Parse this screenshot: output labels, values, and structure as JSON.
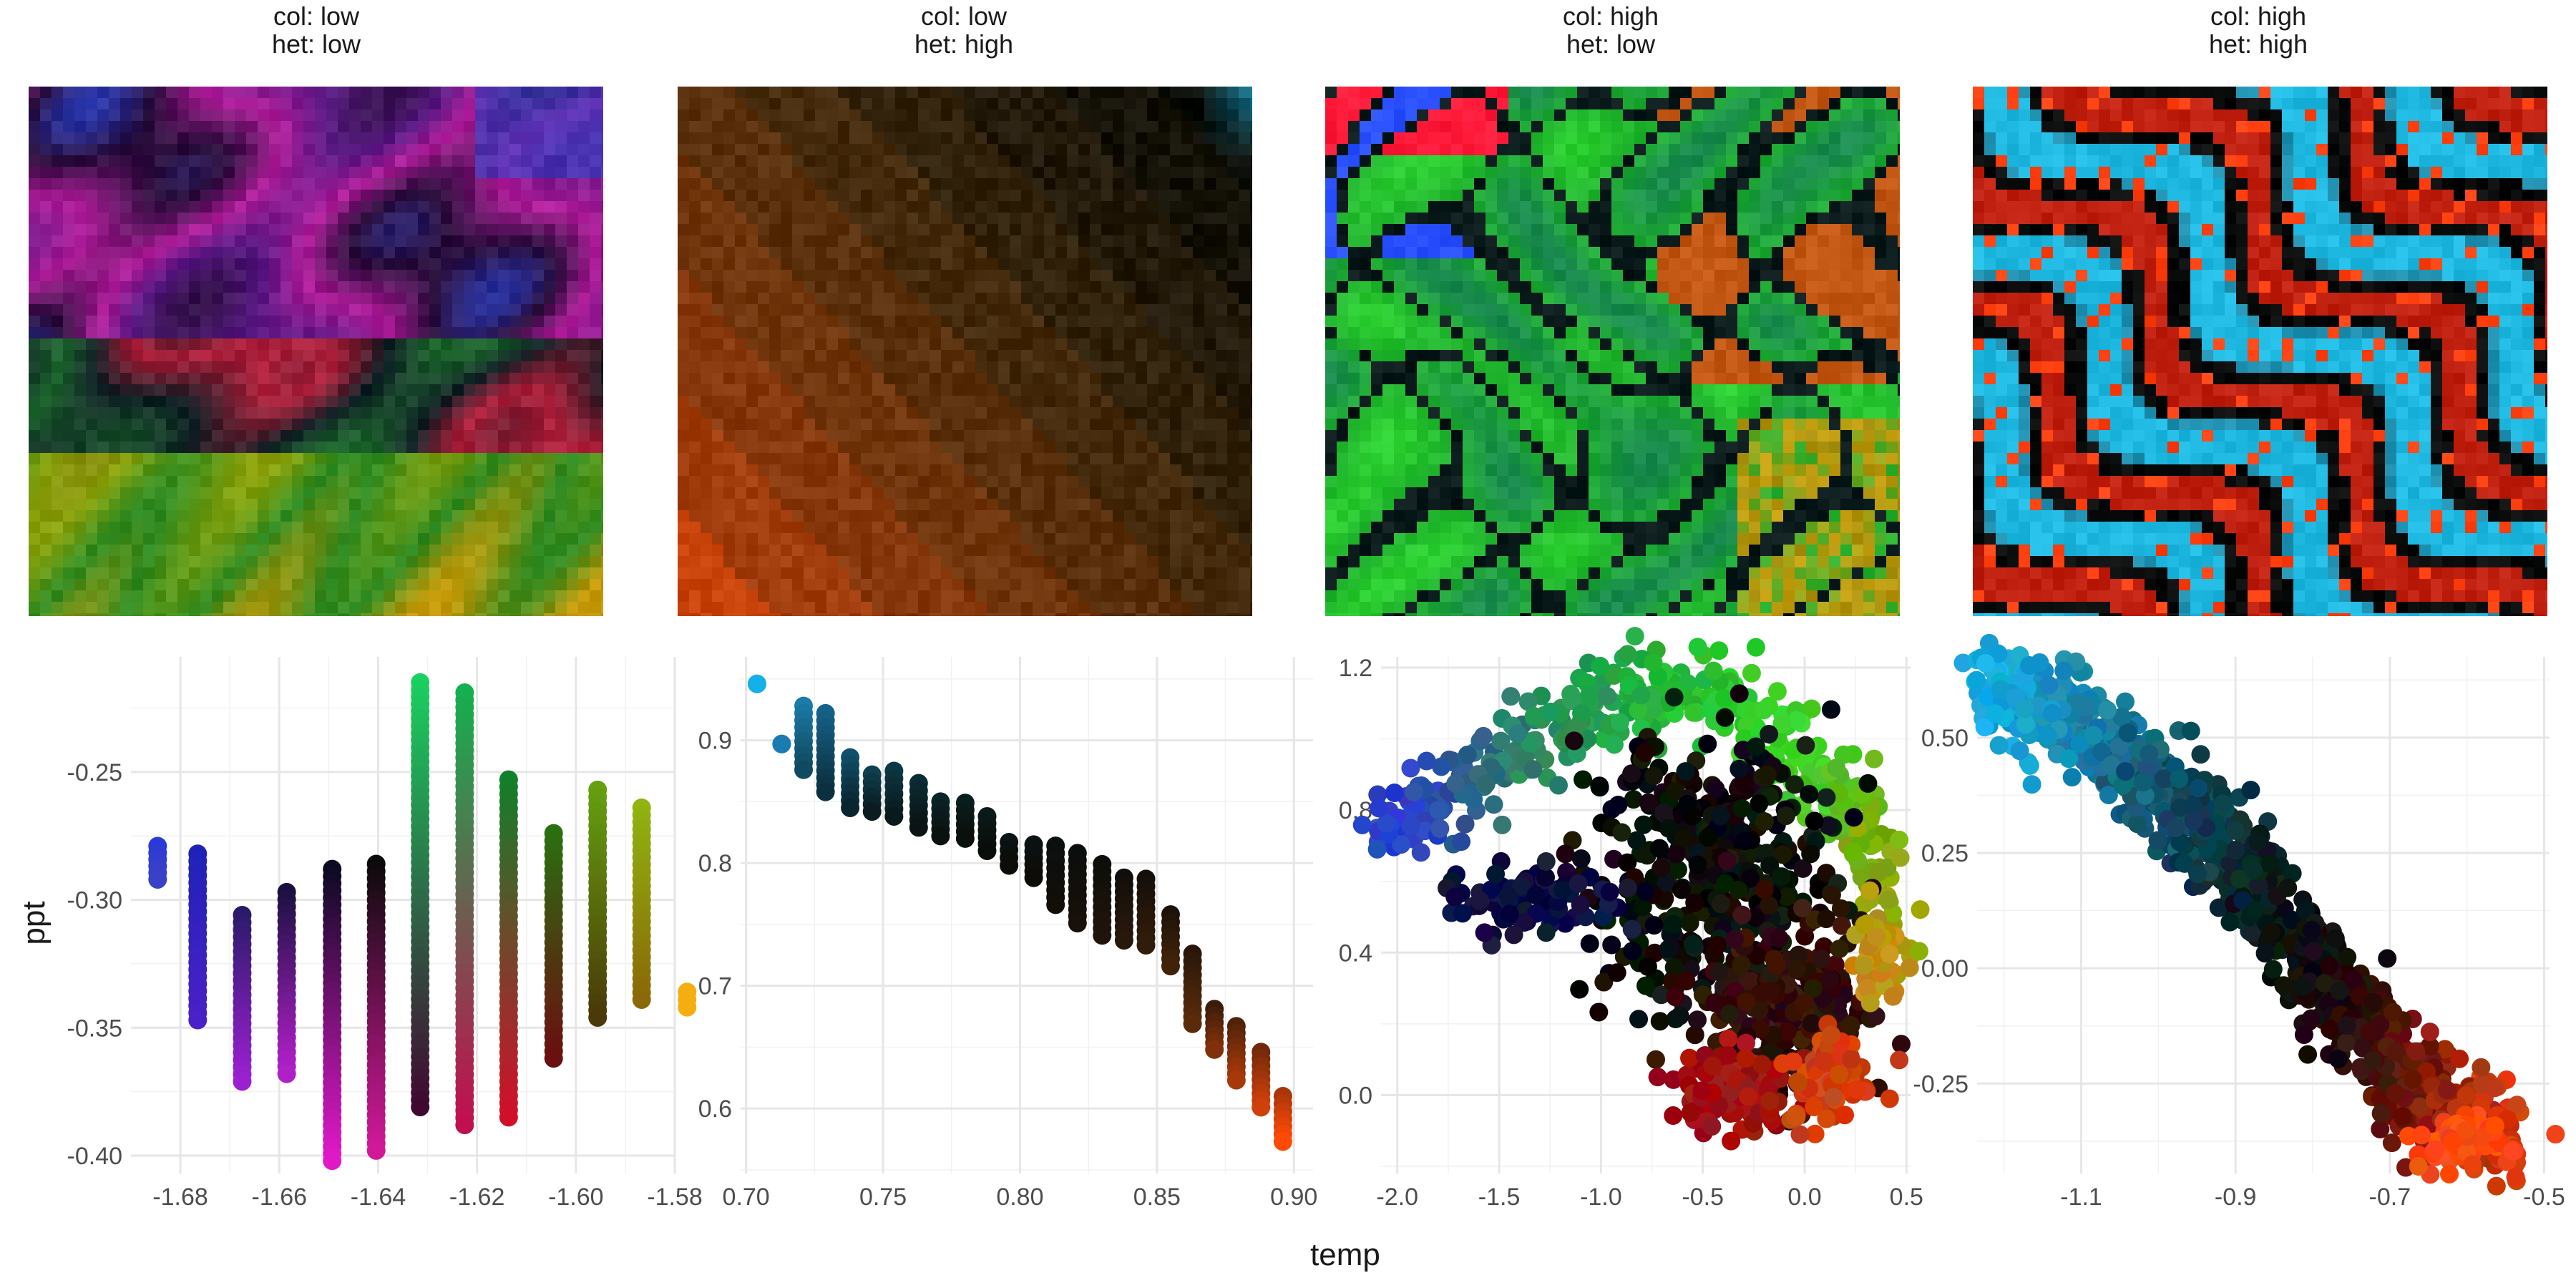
{
  "figure": {
    "x_axis_title": "temp",
    "y_axis_title": "ppt"
  },
  "chart_data": [
    {
      "type": "heatmap",
      "title_line1": "col: low",
      "title_line2": "het: low",
      "colors": [
        "#2a0f3c",
        "#b01d9a",
        "#5a1a85",
        "#2a40c8",
        "#b0203c",
        "#0f1f25",
        "#1f6a2f",
        "#3a3a10",
        "#7a6a08",
        "#8aa20c",
        "#2c8a22",
        "#1b8c1a",
        "#c49a08",
        "#18e03a"
      ]
    },
    {
      "type": "heatmap",
      "title_line1": "col: low",
      "title_line2": "het: high",
      "colors": [
        "#1aa6d0",
        "#080b06",
        "#1a1408",
        "#2e200b",
        "#4a2c0c",
        "#6a340c",
        "#8a380c",
        "#b0400c",
        "#ff4a05"
      ]
    },
    {
      "type": "heatmap",
      "title_line1": "col: high",
      "title_line2": "het: low",
      "colors": [
        "#ff1a3a",
        "#2a50ff",
        "#0a1a1a",
        "#1a8a50",
        "#20b030",
        "#2cd030",
        "#ff6a10",
        "#a08a08",
        "#c8a010"
      ]
    },
    {
      "type": "heatmap",
      "title_line1": "col: high",
      "title_line2": "het: high",
      "colors": [
        "#1fb8e0",
        "#ff4010",
        "#c02010",
        "#0a0c0c",
        "#2090b0"
      ]
    },
    {
      "type": "scatter",
      "xlim": [
        -1.69,
        -1.58
      ],
      "ylim": [
        -0.407,
        -0.205
      ],
      "xticks": [
        -1.68,
        -1.66,
        -1.64,
        -1.62,
        -1.6,
        -1.58
      ],
      "xtick_labels": [
        "-1.68",
        "-1.66",
        "-1.64",
        "-1.62",
        "-1.60",
        "-1.58"
      ],
      "yticks": [
        -0.4,
        -0.35,
        -0.3,
        -0.25
      ],
      "ytick_labels": [
        "-0.40",
        "-0.35",
        "-0.30",
        "-0.25"
      ],
      "columns": [
        {
          "x": -1.6846,
          "ymin": -0.292,
          "ymax": -0.279,
          "top": "#2a3ad8",
          "bottom": "#3a40c8"
        },
        {
          "x": -1.6765,
          "ymin": -0.347,
          "ymax": -0.282,
          "top": "#1f22b8",
          "bottom": "#4a20c8"
        },
        {
          "x": -1.6675,
          "ymin": -0.371,
          "ymax": -0.306,
          "top": "#2a1a6a",
          "bottom": "#9a20d0"
        },
        {
          "x": -1.6585,
          "ymin": -0.368,
          "ymax": -0.297,
          "top": "#1a1040",
          "bottom": "#b020c8"
        },
        {
          "x": -1.6493,
          "ymin": -0.402,
          "ymax": -0.288,
          "top": "#0a0a20",
          "bottom": "#e018c8"
        },
        {
          "x": -1.6404,
          "ymin": -0.398,
          "ymax": -0.286,
          "top": "#0a0a0a",
          "bottom": "#d01898"
        },
        {
          "x": -1.6315,
          "ymin": -0.381,
          "ymax": -0.215,
          "top": "#1ad060",
          "bottom": "#400a30"
        },
        {
          "x": -1.6225,
          "ymin": -0.388,
          "ymax": -0.219,
          "top": "#14b050",
          "bottom": "#c01050"
        },
        {
          "x": -1.6136,
          "ymin": -0.385,
          "ymax": -0.253,
          "top": "#10802a",
          "bottom": "#d0102a"
        },
        {
          "x": -1.6045,
          "ymin": -0.362,
          "ymax": -0.274,
          "top": "#2a7010",
          "bottom": "#6a1010"
        },
        {
          "x": -1.5956,
          "ymin": -0.346,
          "ymax": -0.257,
          "top": "#66a010",
          "bottom": "#4a3a08"
        },
        {
          "x": -1.5867,
          "ymin": -0.339,
          "ymax": -0.264,
          "top": "#90b410",
          "bottom": "#8a6a08"
        },
        {
          "x": -1.5775,
          "ymin": -0.342,
          "ymax": -0.336,
          "top": "#f4ae10",
          "bottom": "#f4ae10"
        }
      ]
    },
    {
      "type": "scatter",
      "xlim": [
        0.698,
        0.907
      ],
      "ylim": [
        0.547,
        0.968
      ],
      "xticks": [
        0.7,
        0.75,
        0.8,
        0.85,
        0.9
      ],
      "xtick_labels": [
        "0.70",
        "0.75",
        "0.80",
        "0.85",
        "0.90"
      ],
      "yticks": [
        0.6,
        0.7,
        0.8,
        0.9
      ],
      "ytick_labels": [
        "0.6",
        "0.7",
        "0.8",
        "0.9"
      ],
      "columns": [
        {
          "x": 0.704,
          "ymin": 0.946,
          "ymax": 0.946,
          "top": "#14b0e8",
          "bottom": "#14b0e8"
        },
        {
          "x": 0.713,
          "ymin": 0.897,
          "ymax": 0.897,
          "top": "#1a7cb0",
          "bottom": "#1a7cb0"
        },
        {
          "x": 0.721,
          "ymin": 0.876,
          "ymax": 0.928,
          "top": "#1a7ca8",
          "bottom": "#104a60"
        },
        {
          "x": 0.729,
          "ymin": 0.858,
          "ymax": 0.922,
          "top": "#15628a",
          "bottom": "#0c3040"
        },
        {
          "x": 0.738,
          "ymin": 0.845,
          "ymax": 0.886,
          "top": "#10506a",
          "bottom": "#0a2530"
        },
        {
          "x": 0.746,
          "ymin": 0.842,
          "ymax": 0.872,
          "top": "#0e4050",
          "bottom": "#0a1c22"
        },
        {
          "x": 0.754,
          "ymin": 0.838,
          "ymax": 0.875,
          "top": "#0c3844",
          "bottom": "#0a1a1c"
        },
        {
          "x": 0.763,
          "ymin": 0.829,
          "ymax": 0.865,
          "top": "#0a2c34",
          "bottom": "#0a1414"
        },
        {
          "x": 0.771,
          "ymin": 0.822,
          "ymax": 0.85,
          "top": "#0a2428",
          "bottom": "#0a1210"
        },
        {
          "x": 0.78,
          "ymin": 0.82,
          "ymax": 0.849,
          "top": "#0a1e20",
          "bottom": "#0a100c"
        },
        {
          "x": 0.788,
          "ymin": 0.81,
          "ymax": 0.838,
          "top": "#0a1a1a",
          "bottom": "#0a0e0a"
        },
        {
          "x": 0.796,
          "ymin": 0.798,
          "ymax": 0.817,
          "top": "#0a1414",
          "bottom": "#0c0c08"
        },
        {
          "x": 0.805,
          "ymin": 0.788,
          "ymax": 0.815,
          "top": "#0a1212",
          "bottom": "#0e0c08"
        },
        {
          "x": 0.813,
          "ymin": 0.766,
          "ymax": 0.814,
          "top": "#0a1010",
          "bottom": "#120e08"
        },
        {
          "x": 0.821,
          "ymin": 0.751,
          "ymax": 0.808,
          "top": "#0a0e0c",
          "bottom": "#18100a"
        },
        {
          "x": 0.83,
          "ymin": 0.741,
          "ymax": 0.799,
          "top": "#0c0e0a",
          "bottom": "#20140a"
        },
        {
          "x": 0.838,
          "ymin": 0.737,
          "ymax": 0.788,
          "top": "#100e0a",
          "bottom": "#28180a"
        },
        {
          "x": 0.846,
          "ymin": 0.733,
          "ymax": 0.787,
          "top": "#140e0a",
          "bottom": "#301c0a"
        },
        {
          "x": 0.855,
          "ymin": 0.716,
          "ymax": 0.758,
          "top": "#1c120a",
          "bottom": "#40220a"
        },
        {
          "x": 0.863,
          "ymin": 0.669,
          "ymax": 0.726,
          "top": "#28160a",
          "bottom": "#5a2a0a"
        },
        {
          "x": 0.871,
          "ymin": 0.648,
          "ymax": 0.681,
          "top": "#3a1c0a",
          "bottom": "#80300a"
        },
        {
          "x": 0.879,
          "ymin": 0.623,
          "ymax": 0.667,
          "top": "#50220a",
          "bottom": "#a8380a"
        },
        {
          "x": 0.888,
          "ymin": 0.601,
          "ymax": 0.646,
          "top": "#70280a",
          "bottom": "#d0400a"
        },
        {
          "x": 0.896,
          "ymin": 0.573,
          "ymax": 0.61,
          "top": "#a8360a",
          "bottom": "#ff4a05"
        }
      ]
    },
    {
      "type": "scatter",
      "xlim": [
        -2.08,
        0.52
      ],
      "ylim": [
        -0.22,
        1.23
      ],
      "xticks": [
        -2.0,
        -1.5,
        -1.0,
        -0.5,
        0.0,
        0.5
      ],
      "xtick_labels": [
        "-2.0",
        "-1.5",
        "-1.0",
        "-0.5",
        "0.0",
        "0.5"
      ],
      "yticks": [
        0.0,
        0.4,
        0.8,
        1.2
      ],
      "ytick_labels": [
        "0.0",
        "0.4",
        "0.8",
        "1.2"
      ],
      "regions": [
        {
          "kind": "strip",
          "path": [
            [
              -2.02,
              0.74
            ],
            [
              -1.7,
              0.87
            ],
            [
              -1.3,
              1.0
            ],
            [
              -0.85,
              1.14
            ],
            [
              -0.4,
              1.12
            ],
            [
              0.0,
              0.95
            ],
            [
              0.3,
              0.74
            ],
            [
              0.45,
              0.43
            ]
          ],
          "width": 0.13,
          "colors": [
            "#2a40d0",
            "#2c5a90",
            "#2a8a60",
            "#20b040",
            "#2cc830",
            "#40d428",
            "#70b010",
            "#a8a008"
          ],
          "n": 420
        },
        {
          "kind": "blob",
          "center": [
            -0.45,
            0.62
          ],
          "radii": [
            0.6,
            0.38
          ],
          "color": "#0c0f0b",
          "n": 420
        },
        {
          "kind": "blob",
          "center": [
            -0.1,
            0.25
          ],
          "radii": [
            0.42,
            0.26
          ],
          "color": "#301008",
          "n": 260
        },
        {
          "kind": "blob",
          "center": [
            -0.35,
            0.0
          ],
          "radii": [
            0.28,
            0.12
          ],
          "color": "#a01010",
          "n": 110
        },
        {
          "kind": "blob",
          "center": [
            0.12,
            0.05
          ],
          "radii": [
            0.18,
            0.12
          ],
          "color": "#d04010",
          "n": 90
        },
        {
          "kind": "blob",
          "center": [
            -1.35,
            0.55
          ],
          "radii": [
            0.42,
            0.1
          ],
          "color": "#0a1040",
          "n": 80
        },
        {
          "kind": "blob",
          "center": [
            0.35,
            0.4
          ],
          "radii": [
            0.1,
            0.15
          ],
          "color": "#c09010",
          "n": 40
        }
      ]
    },
    {
      "type": "scatter",
      "xlim": [
        -1.235,
        -0.493
      ],
      "ylim": [
        -0.445,
        0.675
      ],
      "xticks": [
        -1.1,
        -0.9,
        -0.7,
        -0.5
      ],
      "xtick_labels": [
        "-1.1",
        "-0.9",
        "-0.7",
        "-0.5"
      ],
      "yticks": [
        -0.25,
        0.0,
        0.25,
        0.5
      ],
      "ytick_labels": [
        "-0.25",
        "0.00",
        "0.25",
        "0.50"
      ],
      "regions": [
        {
          "kind": "strip",
          "path": [
            [
              -1.22,
              0.62
            ],
            [
              -1.08,
              0.5
            ],
            [
              -0.95,
              0.32
            ],
            [
              -0.85,
              0.12
            ],
            [
              -0.76,
              -0.08
            ],
            [
              -0.66,
              -0.28
            ],
            [
              -0.55,
              -0.37
            ]
          ],
          "width": 0.14,
          "colors": [
            "#14b0e8",
            "#1a7ca0",
            "#0e4050",
            "#0a1414",
            "#1a0a08",
            "#7a180a",
            "#e04010"
          ],
          "n": 1100
        },
        {
          "kind": "blob",
          "center": [
            -0.6,
            -0.38
          ],
          "radii": [
            0.06,
            0.05
          ],
          "color": "#ff4a10",
          "n": 80
        }
      ]
    }
  ]
}
